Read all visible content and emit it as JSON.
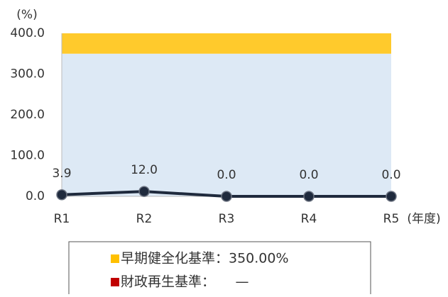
{
  "chart_data": {
    "type": "line",
    "y_unit": "(%)",
    "x_unit": "(年度)",
    "categories": [
      "R1",
      "R2",
      "R3",
      "R4",
      "R5"
    ],
    "series": [
      {
        "color": "#1f2a3d",
        "values": [
          3.9,
          12,
          0,
          0,
          0
        ],
        "value_labels": [
          "3.9",
          "12.0",
          "0.0",
          "0.0",
          "0.0"
        ]
      }
    ],
    "ylim": [
      0,
      400
    ],
    "yticks": [
      {
        "value": 0,
        "label": "0.0"
      },
      {
        "value": 100,
        "label": "100.0"
      },
      {
        "value": 200,
        "label": "200.0"
      },
      {
        "value": 300,
        "label": "300.0"
      },
      {
        "value": 400,
        "label": "400.0"
      }
    ],
    "grid": false,
    "bands": [
      {
        "from": 0,
        "to": 350,
        "color": "#dde9f5"
      },
      {
        "from": 350,
        "to": 400,
        "color": "#ffca2c"
      }
    ],
    "legend": [
      {
        "name": "早期健全化基準：350.00%",
        "color": "#ffc000"
      },
      {
        "name": "財政再生基準：　　—",
        "color": "#c00000"
      }
    ]
  }
}
